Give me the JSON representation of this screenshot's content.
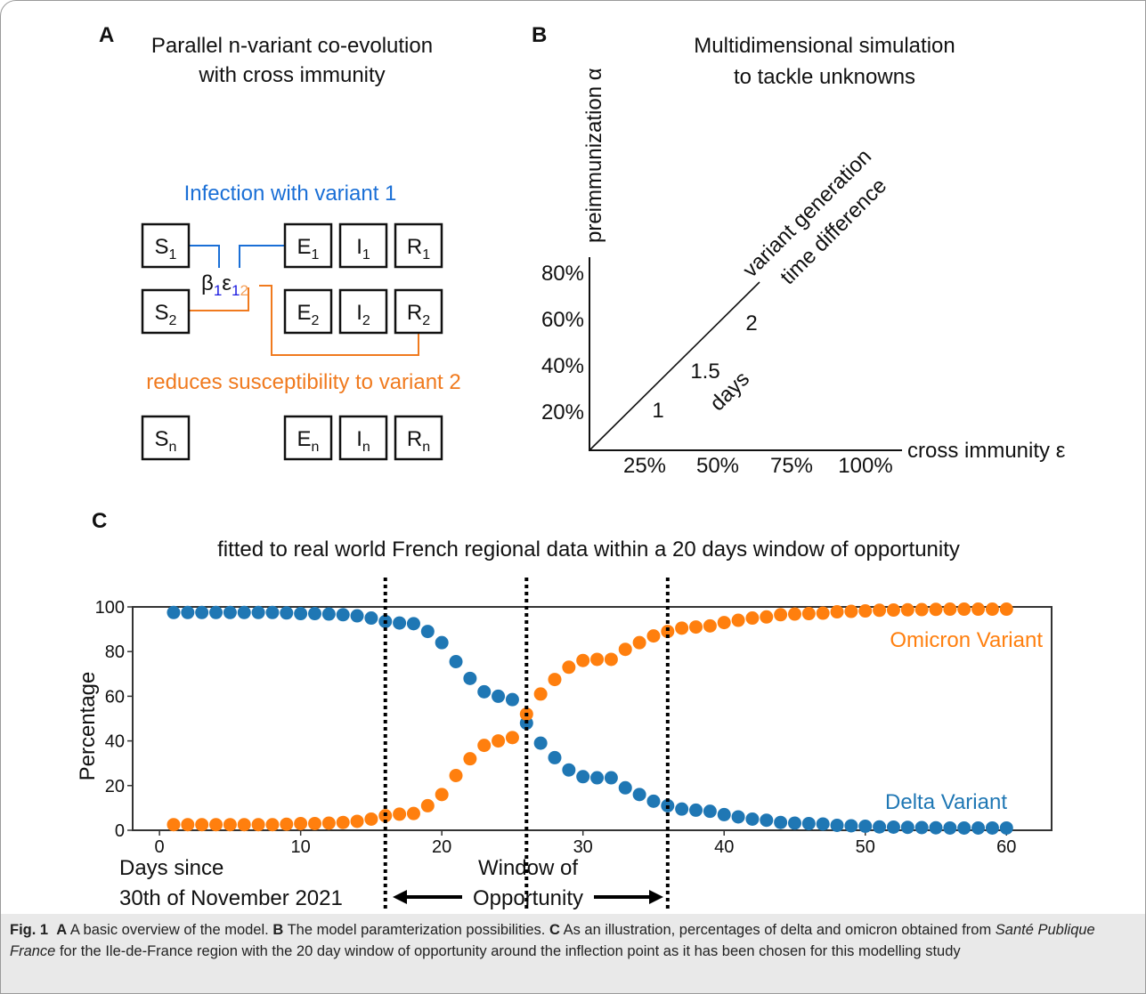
{
  "panel_a": {
    "letter": "A",
    "title": [
      "Parallel n-variant co-evolution",
      "with cross immunity"
    ],
    "infection_label": "Infection with variant 1",
    "reduces_label": "reduces susceptibility to variant 2",
    "coupling": {
      "beta": "β",
      "beta_sub": "1",
      "eps": "ε",
      "eps_sub_1": "1",
      "eps_sub_2": "2"
    },
    "rows": [
      [
        {
          "label": "S",
          "sub": "1"
        },
        {
          "label": "E",
          "sub": "1"
        },
        {
          "label": "I",
          "sub": "1"
        },
        {
          "label": "R",
          "sub": "1"
        }
      ],
      [
        {
          "label": "S",
          "sub": "2"
        },
        {
          "label": "E",
          "sub": "2"
        },
        {
          "label": "I",
          "sub": "2"
        },
        {
          "label": "R",
          "sub": "2"
        }
      ],
      [
        {
          "label": "S",
          "sub": "n"
        },
        {
          "label": "E",
          "sub": "n"
        },
        {
          "label": "I",
          "sub": "n"
        },
        {
          "label": "R",
          "sub": "n"
        }
      ]
    ]
  },
  "panel_b": {
    "letter": "B",
    "title": [
      "Multidimensional simulation",
      "to tackle unknowns"
    ],
    "y_label": "preimmunization α",
    "x_label": "cross immunity ε",
    "diag_label": [
      "variant generation",
      "time difference"
    ],
    "y_ticks": [
      "80%",
      "60%",
      "40%",
      "20%"
    ],
    "x_ticks": [
      "25%",
      "50%",
      "75%",
      "100%"
    ],
    "diag_ticks": [
      "1",
      "1.5",
      "2"
    ],
    "diag_unit": "days"
  },
  "chart_data": {
    "type": "scatter",
    "letter": "C",
    "title": "fitted to real world French regional data within a 20 days window of opportunity",
    "y_label": "Percentage",
    "x_label": [
      "Days since",
      "30th of November 2021"
    ],
    "window_label": [
      "Window of",
      "Opportunity"
    ],
    "window_lines": [
      16,
      26,
      36
    ],
    "xlim": [
      -1.9,
      63.2
    ],
    "ylim": [
      0,
      100
    ],
    "xticks": [
      0,
      10,
      20,
      30,
      40,
      50,
      60
    ],
    "yticks": [
      0,
      20,
      40,
      60,
      80,
      100
    ],
    "x": [
      1,
      2,
      3,
      4,
      5,
      6,
      7,
      8,
      9,
      10,
      11,
      12,
      13,
      14,
      15,
      16,
      17,
      18,
      19,
      20,
      21,
      22,
      23,
      24,
      25,
      26,
      27,
      28,
      29,
      30,
      31,
      32,
      33,
      34,
      35,
      36,
      37,
      38,
      39,
      40,
      41,
      42,
      43,
      44,
      45,
      46,
      47,
      48,
      49,
      50,
      51,
      52,
      53,
      54,
      55,
      56,
      57,
      58,
      59,
      60
    ],
    "series": [
      {
        "name": "Delta Variant",
        "color": "#1f77b4",
        "values": [
          97.5,
          97.5,
          97.5,
          97.5,
          97.5,
          97.5,
          97.5,
          97.5,
          97.3,
          97,
          97,
          96.8,
          96.5,
          96,
          95,
          93.5,
          92.8,
          92.5,
          89,
          84,
          75.5,
          68,
          62,
          60,
          58.5,
          48,
          39,
          32.5,
          27,
          24,
          23.5,
          23.5,
          19,
          16,
          13,
          11,
          9.5,
          9,
          8.5,
          7,
          6,
          5,
          4.5,
          3.5,
          3.2,
          3,
          2.8,
          2.2,
          2,
          1.8,
          1.5,
          1.4,
          1.3,
          1.2,
          1.1,
          1,
          1,
          1,
          1,
          1
        ]
      },
      {
        "name": "Omicron Variant",
        "color": "#ff7f0e",
        "values": [
          2.5,
          2.5,
          2.5,
          2.5,
          2.5,
          2.5,
          2.5,
          2.5,
          2.7,
          3,
          3,
          3.2,
          3.5,
          4,
          5,
          6.5,
          7.2,
          7.5,
          11,
          16,
          24.5,
          32,
          38,
          40,
          41.5,
          52,
          61,
          67.5,
          73,
          76,
          76.5,
          76.5,
          81,
          84,
          87,
          89,
          90.5,
          91,
          91.5,
          93,
          94,
          95,
          95.5,
          96.5,
          96.8,
          97,
          97.2,
          97.8,
          98,
          98.2,
          98.5,
          98.6,
          98.7,
          98.8,
          98.9,
          99,
          99,
          99,
          99,
          99
        ]
      }
    ]
  },
  "caption": {
    "label": "Fig. 1",
    "a_key": "A",
    "a_text": "A basic overview of the model.",
    "b_key": "B",
    "b_text": "The model paramterization possibilities.",
    "c_key": "C",
    "c_text_1": "As an illustration, percentages of delta and omicron obtained from",
    "c_italic": "Santé Publique France",
    "c_text_2": "for the Ile-de-France region with the 20 day window of opportunity around the inflection point as it has been chosen for this modelling study"
  }
}
